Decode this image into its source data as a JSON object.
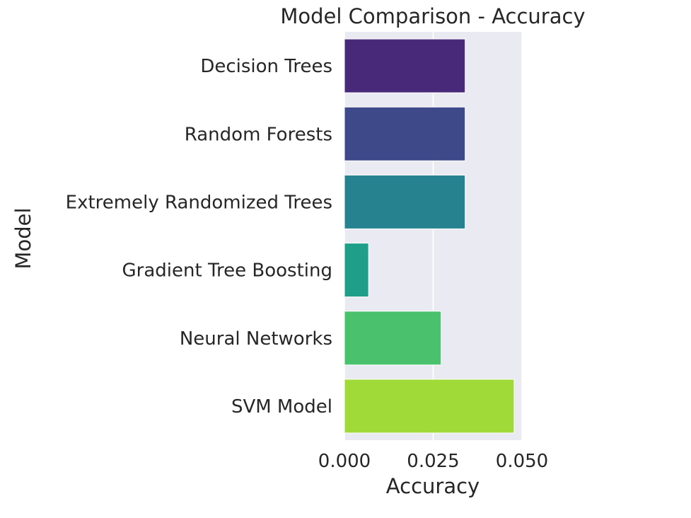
{
  "chart_data": {
    "type": "bar",
    "orientation": "horizontal",
    "title": "Model Comparison - Accuracy",
    "xlabel": "Accuracy",
    "ylabel": "Model",
    "categories": [
      "Decision Trees",
      "Random Forests",
      "Extremely Randomized Trees",
      "Gradient Tree Boosting",
      "Neural Networks",
      "SVM Model"
    ],
    "values": [
      0.034,
      0.034,
      0.034,
      0.0068,
      0.0272,
      0.0478
    ],
    "colors": [
      "#482878",
      "#3e4989",
      "#26828e",
      "#1f9e89",
      "#4ac16d",
      "#a0da39"
    ],
    "xlim": [
      0,
      0.05
    ],
    "xticks": [
      0,
      0.025,
      0.05
    ],
    "xtick_labels": [
      "0.000",
      "0.025",
      "0.050"
    ],
    "grid": true,
    "background": "#eaeaf2",
    "grid_color": "#ffffff"
  }
}
